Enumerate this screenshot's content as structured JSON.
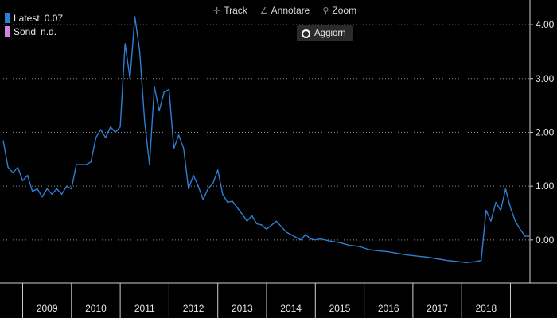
{
  "toolbar": {
    "track_label": "Track",
    "annotate_label": "Annotare",
    "zoom_label": "Zoom",
    "refresh_label": "Aggiorn"
  },
  "legend": [
    {
      "name": "Latest",
      "value": "0.07",
      "color": "#2d7fd4"
    },
    {
      "name": "Sond",
      "value": "n.d.",
      "color": "#d183e0"
    }
  ],
  "colors": {
    "background": "#000000",
    "line": "#2d7fd4",
    "text": "#e6e6e6"
  },
  "chart_data": {
    "type": "line",
    "ylim": [
      -0.8,
      4.4
    ],
    "yticks": [
      0,
      1,
      2,
      3,
      4
    ],
    "ytick_labels": [
      "0.00",
      "1.00",
      "2.00",
      "3.00",
      "4.00"
    ],
    "xlim": [
      2008.6,
      2019.4
    ],
    "xtick_labels": [
      "2009",
      "2010",
      "2011",
      "2012",
      "2013",
      "2014",
      "2015",
      "2016",
      "2017",
      "2018"
    ],
    "grid": "horizontal-dotted",
    "series": [
      {
        "name": "Latest",
        "x": [
          2008.6,
          2008.7,
          2008.8,
          2008.9,
          2009.0,
          2009.1,
          2009.2,
          2009.3,
          2009.4,
          2009.5,
          2009.6,
          2009.7,
          2009.8,
          2009.9,
          2010.0,
          2010.1,
          2010.2,
          2010.3,
          2010.4,
          2010.5,
          2010.6,
          2010.7,
          2010.8,
          2010.9,
          2011.0,
          2011.1,
          2011.2,
          2011.3,
          2011.4,
          2011.5,
          2011.6,
          2011.7,
          2011.8,
          2011.9,
          2012.0,
          2012.1,
          2012.2,
          2012.3,
          2012.4,
          2012.5,
          2012.6,
          2012.7,
          2012.8,
          2012.9,
          2013.0,
          2013.1,
          2013.2,
          2013.3,
          2013.4,
          2013.5,
          2013.6,
          2013.7,
          2013.8,
          2013.9,
          2014.0,
          2014.2,
          2014.4,
          2014.6,
          2014.7,
          2014.8,
          2014.9,
          2015.0,
          2015.1,
          2015.2,
          2015.3,
          2015.5,
          2015.7,
          2015.9,
          2016.1,
          2016.3,
          2016.5,
          2016.7,
          2016.9,
          2017.1,
          2017.3,
          2017.5,
          2017.7,
          2017.9,
          2018.1,
          2018.3,
          2018.4,
          2018.5,
          2018.6,
          2018.7,
          2018.8,
          2018.9,
          2019.0,
          2019.1,
          2019.2,
          2019.3,
          2019.4
        ],
        "y": [
          1.85,
          1.35,
          1.25,
          1.35,
          1.1,
          1.2,
          0.9,
          0.95,
          0.8,
          0.95,
          0.85,
          0.95,
          0.85,
          1.0,
          0.95,
          1.4,
          1.4,
          1.4,
          1.45,
          1.9,
          2.05,
          1.9,
          2.1,
          2.0,
          2.1,
          3.65,
          3.0,
          4.15,
          3.5,
          2.2,
          1.4,
          2.85,
          2.4,
          2.75,
          2.8,
          1.7,
          1.95,
          1.7,
          0.95,
          1.2,
          1.0,
          0.75,
          0.95,
          1.05,
          1.3,
          0.85,
          0.7,
          0.72,
          0.6,
          0.48,
          0.35,
          0.45,
          0.3,
          0.28,
          0.2,
          0.35,
          0.15,
          0.05,
          0.0,
          0.1,
          0.02,
          0.0,
          0.02,
          0.0,
          -0.02,
          -0.05,
          -0.1,
          -0.12,
          -0.18,
          -0.2,
          -0.22,
          -0.25,
          -0.28,
          -0.3,
          -0.32,
          -0.35,
          -0.38,
          -0.4,
          -0.42,
          -0.4,
          -0.38,
          0.55,
          0.35,
          0.7,
          0.55,
          0.95,
          0.6,
          0.35,
          0.2,
          0.07,
          0.07
        ]
      }
    ]
  }
}
